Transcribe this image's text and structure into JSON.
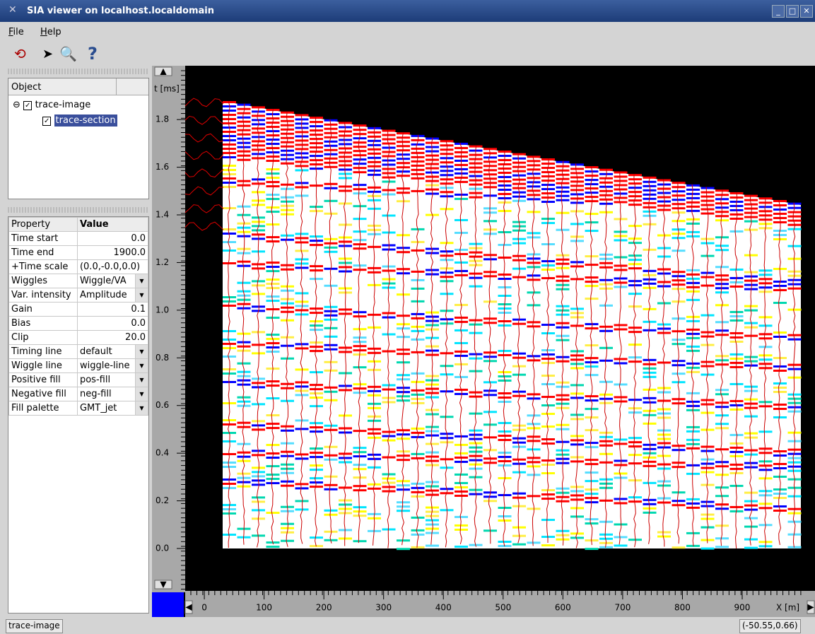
{
  "window": {
    "title": "SIA viewer on localhost.localdomain"
  },
  "menu": [
    "File",
    "Help"
  ],
  "object_tree": {
    "header": "Object",
    "items": [
      "trace-image",
      "trace-section"
    ]
  },
  "properties": {
    "headers": [
      "Property",
      "Value"
    ],
    "rows": [
      [
        "Time start",
        "0.0"
      ],
      [
        "Time end",
        "1900.0"
      ],
      [
        "+Time scale",
        "(0.0,-0.0,0.0)"
      ],
      [
        "Wiggles",
        "Wiggle/VA"
      ],
      [
        "Var. intensity",
        "Amplitude"
      ],
      [
        "Gain",
        "0.1"
      ],
      [
        "Bias",
        "0.0"
      ],
      [
        "Clip",
        "20.0"
      ],
      [
        "Timing line",
        "default"
      ],
      [
        "Wiggle line",
        "wiggle-line"
      ],
      [
        "Positive fill",
        "pos-fill"
      ],
      [
        "Negative fill",
        "neg-fill"
      ],
      [
        "Fill palette",
        "GMT_jet"
      ]
    ]
  },
  "chart_data": {
    "type": "seismic-section",
    "x_label": "X [m]",
    "y_label": "t [ms]",
    "xlim": [
      -32,
      1010
    ],
    "ylim": [
      -0.175,
      2.02
    ],
    "xticks": [
      0,
      100,
      200,
      300,
      400,
      500,
      600,
      700,
      800,
      900
    ],
    "yticks": [
      {
        "value": 0,
        "label": "0.0"
      },
      {
        "value": 0.2,
        "label": "0.2"
      },
      {
        "value": 0.4,
        "label": "0.4"
      },
      {
        "value": 0.6,
        "label": "0.6"
      },
      {
        "value": 0.8,
        "label": "0.8"
      },
      {
        "value": 1.0,
        "label": "1.0"
      },
      {
        "value": 1.2,
        "label": "1.2"
      },
      {
        "value": 1.4,
        "label": "1.4"
      },
      {
        "value": 1.6,
        "label": "1.6"
      },
      {
        "value": 1.8,
        "label": "1.8"
      }
    ]
  },
  "status": {
    "left": "trace-image",
    "right": "(-50.55,0.66)"
  }
}
